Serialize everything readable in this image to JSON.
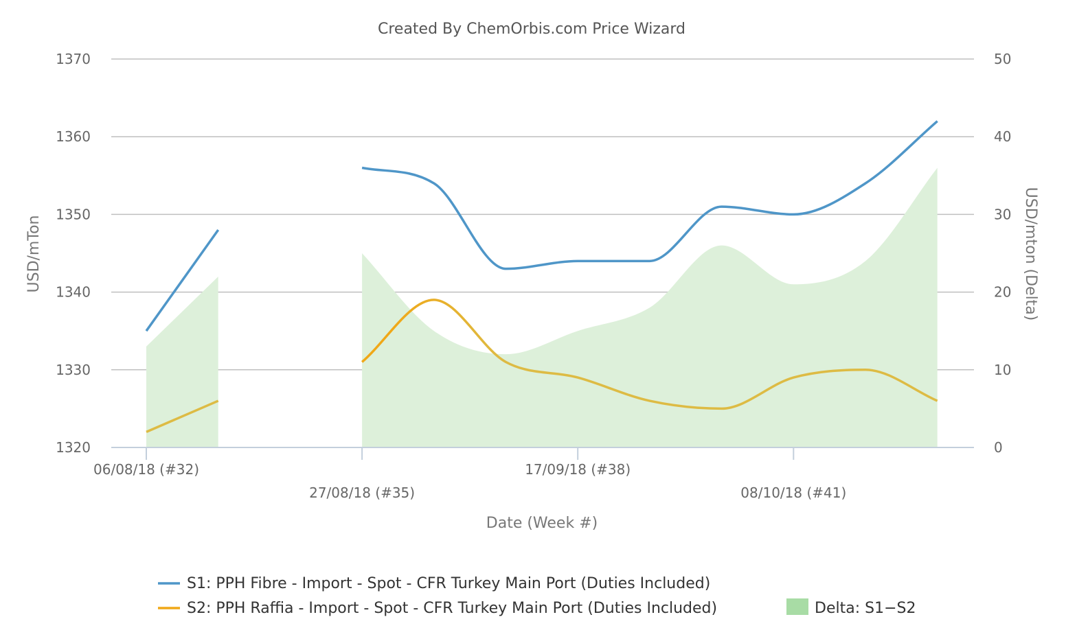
{
  "chart_data": {
    "type": "line",
    "title": "Created By ChemOrbis.com Price Wizard",
    "xlabel": "Date (Week #)",
    "ylabel": "USD/mTon",
    "y2label": "USD/mton (Delta)",
    "ylim": [
      1320,
      1370
    ],
    "y2lim": [
      0,
      50
    ],
    "yticks": [
      1320,
      1330,
      1340,
      1350,
      1360,
      1370
    ],
    "y2ticks": [
      0,
      10,
      20,
      30,
      40,
      50
    ],
    "grid": true,
    "legend_position": "bottom",
    "weeks": [
      32,
      33,
      34,
      35,
      36,
      37,
      38,
      39,
      40,
      41,
      42,
      43
    ],
    "x_ticks": [
      {
        "week": 32,
        "label": "06/08/18 (#32)"
      },
      {
        "week": 35,
        "label": "27/08/18 (#35)"
      },
      {
        "week": 38,
        "label": "17/09/18 (#38)"
      },
      {
        "week": 41,
        "label": "08/10/18 (#41)"
      }
    ],
    "series": [
      {
        "name": "S1: PPH Fibre - Import - Spot - CFR Turkey Main Port (Duties Included)",
        "color": "#4f96c8",
        "axis": "left",
        "values": [
          1335,
          1348,
          null,
          1356,
          1354,
          1343,
          1344,
          1344,
          1351,
          1350,
          1354,
          1362
        ]
      },
      {
        "name": "S2: PPH Raffia - Import - Spot - CFR Turkey Main Port (Duties Included)",
        "color": "#f0a818",
        "color_end": "#ddbb44",
        "axis": "left",
        "values": [
          1322,
          1326,
          null,
          1331,
          1339,
          1331,
          1329,
          1326,
          1325,
          1329,
          1330,
          1326
        ]
      },
      {
        "name": "Delta: S1−S2",
        "color": "#a8dca5",
        "fill": "#ddf0da",
        "axis": "right",
        "type": "area",
        "values": [
          13,
          22,
          null,
          25,
          15,
          12,
          15,
          18,
          26,
          21,
          24,
          36
        ]
      }
    ]
  }
}
